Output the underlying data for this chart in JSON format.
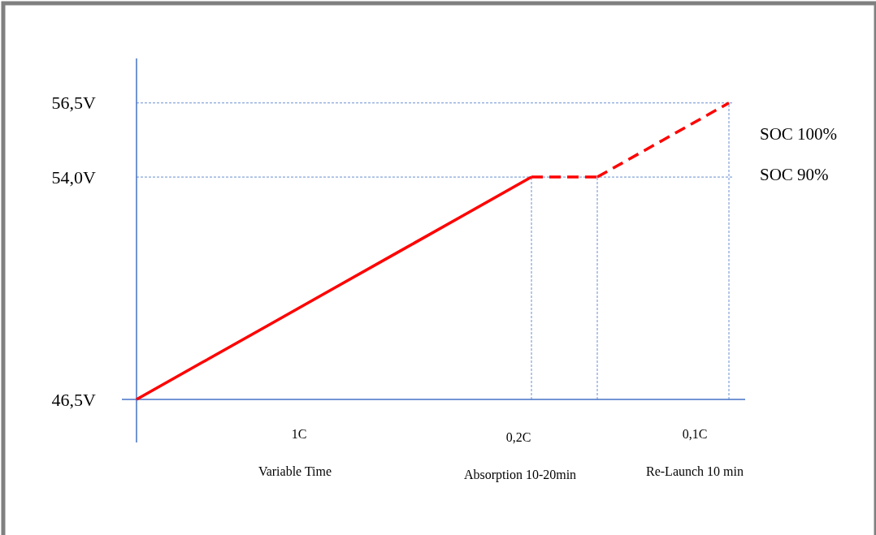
{
  "chart_data": {
    "type": "line",
    "categories": [
      null,
      null,
      null,
      null,
      null,
      null,
      null,
      null,
      null,
      null
    ],
    "ylim": [
      46.5,
      58
    ],
    "yticks": [
      {
        "value": 46.5,
        "label": "46,5V"
      },
      {
        "value": 54.0,
        "label": "54,0V"
      },
      {
        "value": 56.5,
        "label": "56,5V"
      }
    ],
    "tick_labels": "y",
    "grid": false,
    "marker": "none",
    "series": [
      {
        "color": "#ff0000",
        "values": [
          46.5,
          47.75,
          49,
          50.25,
          51.5,
          52.75,
          54.0,
          null,
          null,
          null
        ],
        "line_style": "solid"
      },
      {
        "color": "#ff0000",
        "values": [
          null,
          null,
          null,
          null,
          null,
          null,
          54.0,
          54.0,
          null,
          null
        ],
        "line_style": "dashed"
      },
      {
        "color": "#ff0000",
        "values": [
          null,
          null,
          null,
          null,
          null,
          null,
          null,
          54.0,
          55.25,
          56.5
        ],
        "line_style": "dashed"
      }
    ],
    "ref_lines": [
      {
        "axis": "y",
        "value": 56.5,
        "color": "#4472c4",
        "line_style": "dashed"
      },
      {
        "axis": "y",
        "value": 54.0,
        "color": "#4472c4",
        "line_style": "dashed"
      }
    ],
    "annotations": [
      "SOC 100%",
      "SOC 90%",
      "1C",
      "Variable Time",
      "0,2C",
      "Absorption 10-20min",
      "0,1C",
      "Re-Launch 10 min"
    ]
  }
}
